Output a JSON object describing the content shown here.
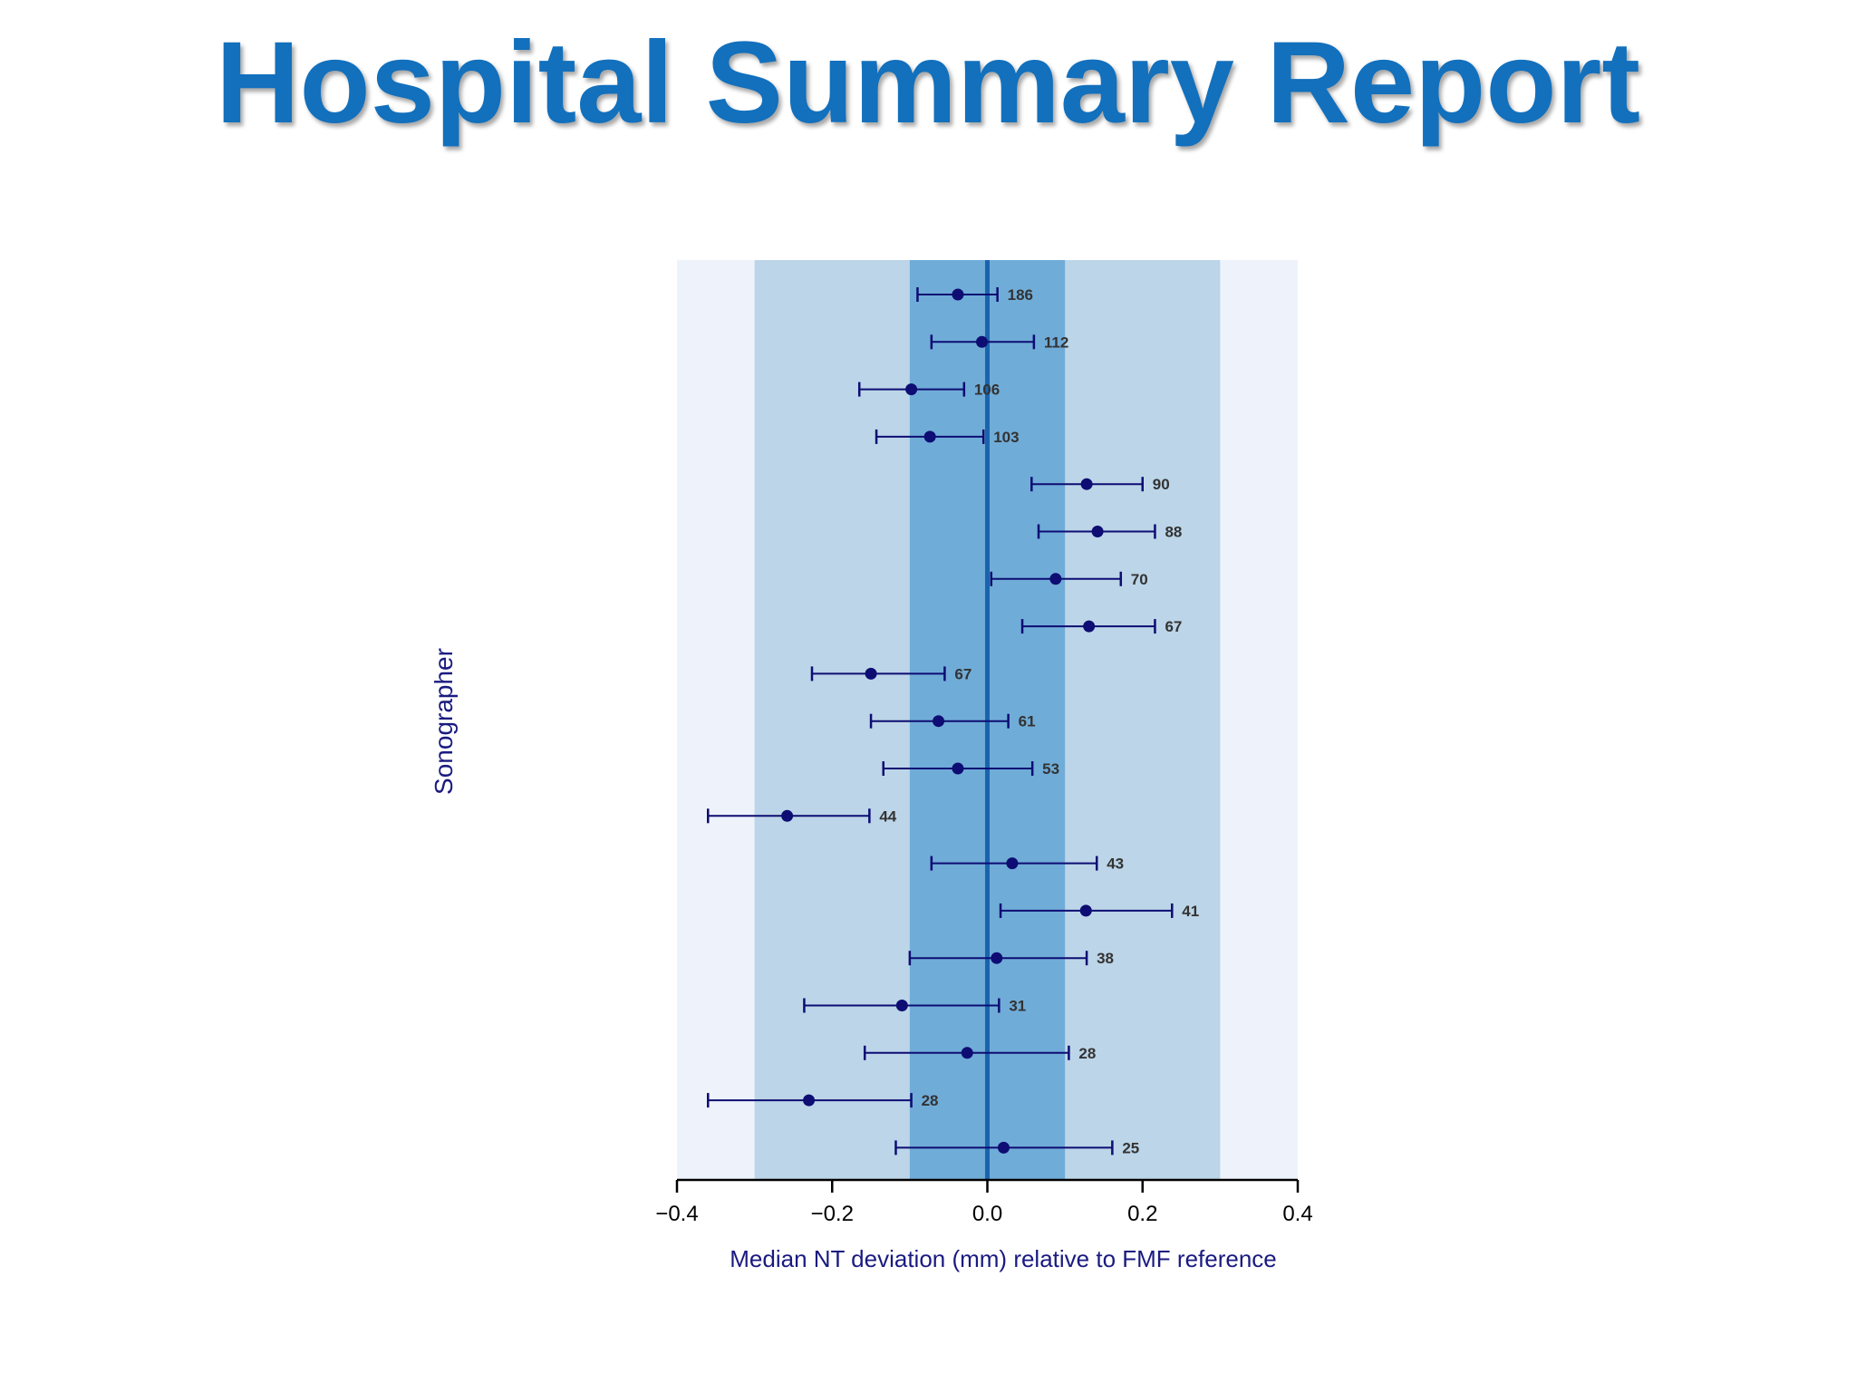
{
  "slide": {
    "title": "Hospital Summary Report"
  },
  "colors": {
    "title": "#1270bd",
    "outer_band": "#eef2fb",
    "middle_band": "#bcd5e8",
    "inner_band": "#70acd8",
    "center_line": "#1a64ad",
    "points": "#0d0d73",
    "axis": "#000000",
    "axis_label": "#1a1a80"
  },
  "chart_data": {
    "type": "scatter",
    "title": "",
    "xlabel": "Median NT deviation (mm) relative to FMF reference",
    "ylabel": "Sonographer",
    "xlim": [
      -0.4,
      0.4
    ],
    "xticks": [
      -0.4,
      -0.2,
      0.0,
      0.2,
      0.4
    ],
    "xtick_labels": [
      "−0.4",
      "−0.2",
      "0.0",
      "0.2",
      "0.4"
    ],
    "reference_line": 0.0,
    "bands": [
      {
        "name": "outer",
        "range": [
          -0.4,
          0.4
        ]
      },
      {
        "name": "middle",
        "range": [
          -0.3,
          0.3
        ]
      },
      {
        "name": "inner",
        "range": [
          -0.1,
          0.1
        ]
      }
    ],
    "points": [
      {
        "n": "186",
        "median": -0.038,
        "low": -0.09,
        "high": 0.013
      },
      {
        "n": "112",
        "median": -0.007,
        "low": -0.072,
        "high": 0.06
      },
      {
        "n": "106",
        "median": -0.098,
        "low": -0.165,
        "high": -0.03
      },
      {
        "n": "103",
        "median": -0.074,
        "low": -0.143,
        "high": -0.005
      },
      {
        "n": "90",
        "median": 0.128,
        "low": 0.057,
        "high": 0.2
      },
      {
        "n": "88",
        "median": 0.142,
        "low": 0.066,
        "high": 0.216
      },
      {
        "n": "70",
        "median": 0.088,
        "low": 0.005,
        "high": 0.172
      },
      {
        "n": "67",
        "median": 0.131,
        "low": 0.045,
        "high": 0.216
      },
      {
        "n": "67",
        "median": -0.15,
        "low": -0.226,
        "high": -0.055
      },
      {
        "n": "61",
        "median": -0.063,
        "low": -0.15,
        "high": 0.027
      },
      {
        "n": "53",
        "median": -0.038,
        "low": -0.134,
        "high": 0.058
      },
      {
        "n": "44",
        "median": -0.258,
        "low": -0.36,
        "high": -0.152
      },
      {
        "n": "43",
        "median": 0.032,
        "low": -0.072,
        "high": 0.141
      },
      {
        "n": "41",
        "median": 0.127,
        "low": 0.017,
        "high": 0.238
      },
      {
        "n": "38",
        "median": 0.012,
        "low": -0.1,
        "high": 0.128
      },
      {
        "n": "31",
        "median": -0.11,
        "low": -0.236,
        "high": 0.015
      },
      {
        "n": "28",
        "median": -0.026,
        "low": -0.158,
        "high": 0.105
      },
      {
        "n": "28",
        "median": -0.23,
        "low": -0.36,
        "high": -0.098
      },
      {
        "n": "25",
        "median": 0.021,
        "low": -0.118,
        "high": 0.161
      }
    ]
  }
}
